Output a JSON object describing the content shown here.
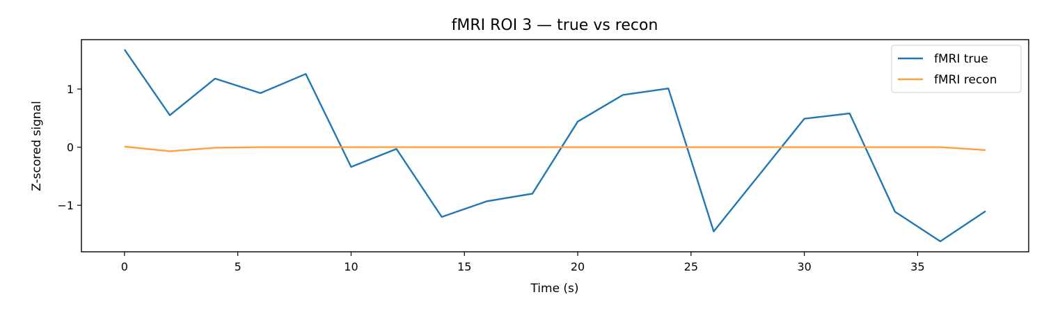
{
  "chart_data": {
    "type": "line",
    "title": "fMRI ROI 3 — true vs recon",
    "xlabel": "Time (s)",
    "ylabel": "Z-scored signal",
    "xlim": [
      -1.9,
      39.9
    ],
    "ylim": [
      -1.8,
      1.85
    ],
    "xticks": [
      0,
      5,
      10,
      15,
      20,
      25,
      30,
      35
    ],
    "yticks": [
      -1,
      0,
      1
    ],
    "xtick_labels": [
      "0",
      "5",
      "10",
      "15",
      "20",
      "25",
      "30",
      "35"
    ],
    "ytick_labels": [
      "−1",
      "0",
      "1"
    ],
    "grid": false,
    "legend_position": "top-right",
    "x": [
      0,
      2,
      4,
      6,
      8,
      10,
      12,
      14,
      16,
      18,
      20,
      22,
      24,
      26,
      28,
      30,
      32,
      34,
      36,
      38
    ],
    "series": [
      {
        "name": "fMRI true",
        "color": "#1f77b4",
        "values": [
          1.68,
          0.55,
          1.18,
          0.93,
          1.26,
          -0.34,
          -0.03,
          -1.2,
          -0.93,
          -0.8,
          0.44,
          0.9,
          1.01,
          -1.45,
          -0.48,
          0.49,
          0.58,
          -1.11,
          -1.62,
          -1.1
        ]
      },
      {
        "name": "fMRI recon",
        "color": "#ff9f3f",
        "values": [
          0.01,
          -0.07,
          -0.01,
          0.0,
          0.0,
          0.0,
          0.0,
          0.0,
          0.0,
          0.0,
          0.0,
          0.0,
          0.0,
          0.0,
          0.0,
          0.0,
          0.0,
          0.0,
          0.0,
          -0.05
        ]
      }
    ]
  }
}
